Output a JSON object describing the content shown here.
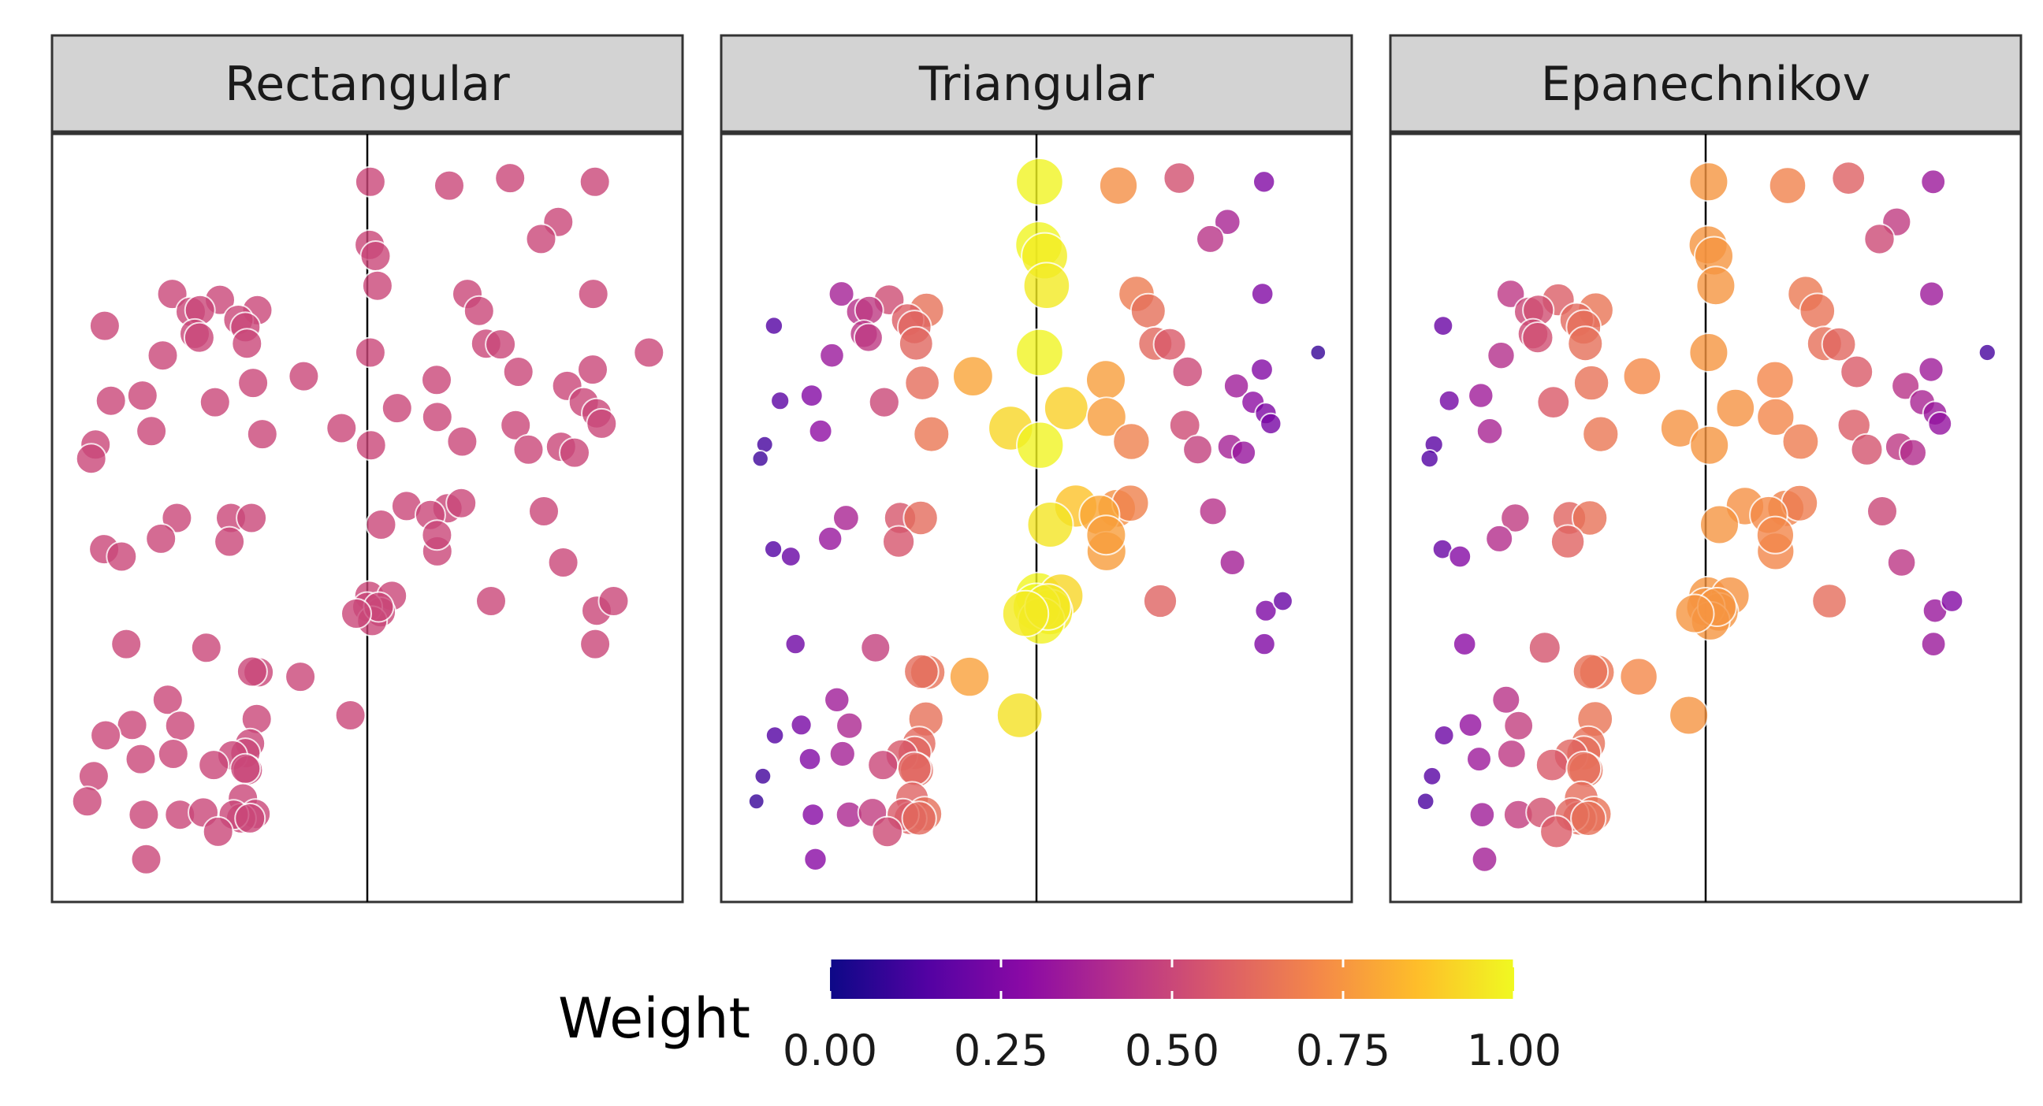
{
  "chart_data": {
    "type": "scatter",
    "facets": [
      "Rectangular",
      "Triangular",
      "Epanechnikov"
    ],
    "facet_kernels": [
      "rect",
      "tri",
      "epa"
    ],
    "cutoff_x": 0,
    "xlim": [
      -1,
      1
    ],
    "ylim": [
      0,
      1
    ],
    "grid": false,
    "legend": {
      "title": "Weight",
      "position": "bottom",
      "ticks": [
        0,
        0.25,
        0.5,
        0.75,
        1
      ],
      "tick_labels": [
        "0.00",
        "0.25",
        "0.50",
        "0.75",
        "1.00"
      ],
      "colors": [
        "#0d0887",
        "#5302a3",
        "#8b0aa5",
        "#b83289",
        "#db5c68",
        "#f48849",
        "#febd2a",
        "#f0f921"
      ]
    },
    "points": [
      {
        "x": 0.01,
        "y": 0.953
      },
      {
        "x": 0.267,
        "y": 0.948
      },
      {
        "x": 0.465,
        "y": 0.958
      },
      {
        "x": 0.741,
        "y": 0.953
      },
      {
        "x": 0.622,
        "y": 0.899
      },
      {
        "x": 0.566,
        "y": 0.876
      },
      {
        "x": 0.008,
        "y": 0.868
      },
      {
        "x": 0.027,
        "y": 0.853
      },
      {
        "x": 0.033,
        "y": 0.813
      },
      {
        "x": 0.326,
        "y": 0.802
      },
      {
        "x": 0.364,
        "y": 0.779
      },
      {
        "x": 0.736,
        "y": 0.802
      },
      {
        "x": 0.387,
        "y": 0.735
      },
      {
        "x": 0.434,
        "y": 0.734
      },
      {
        "x": 0.01,
        "y": 0.723
      },
      {
        "x": 0.917,
        "y": 0.723
      },
      {
        "x": 0.492,
        "y": 0.697
      },
      {
        "x": 0.734,
        "y": 0.7
      },
      {
        "x": 0.226,
        "y": 0.686
      },
      {
        "x": 0.651,
        "y": 0.678
      },
      {
        "x": 0.705,
        "y": 0.656
      },
      {
        "x": 0.097,
        "y": 0.648
      },
      {
        "x": 0.228,
        "y": 0.636
      },
      {
        "x": 0.747,
        "y": 0.641
      },
      {
        "x": 0.763,
        "y": 0.627
      },
      {
        "x": 0.483,
        "y": 0.625
      },
      {
        "x": -0.084,
        "y": 0.621
      },
      {
        "x": 0.309,
        "y": 0.603
      },
      {
        "x": 0.631,
        "y": 0.596
      },
      {
        "x": 0.012,
        "y": 0.598
      },
      {
        "x": 0.525,
        "y": 0.592
      },
      {
        "x": 0.675,
        "y": 0.588
      },
      {
        "x": 0.128,
        "y": 0.516
      },
      {
        "x": 0.261,
        "y": 0.513
      },
      {
        "x": 0.306,
        "y": 0.52
      },
      {
        "x": 0.205,
        "y": 0.504
      },
      {
        "x": 0.575,
        "y": 0.509
      },
      {
        "x": 0.045,
        "y": 0.491
      },
      {
        "x": 0.228,
        "y": 0.455
      },
      {
        "x": 0.227,
        "y": 0.477
      },
      {
        "x": 0.638,
        "y": 0.44
      },
      {
        "x": 0.747,
        "y": 0.375
      },
      {
        "x": 0.007,
        "y": 0.395
      },
      {
        "x": 0.08,
        "y": 0.395
      },
      {
        "x": 0.044,
        "y": 0.373
      },
      {
        "x": 0.0,
        "y": 0.38
      },
      {
        "x": 0.016,
        "y": 0.361
      },
      {
        "x": 0.037,
        "y": 0.38
      },
      {
        "x": -0.036,
        "y": 0.371
      },
      {
        "x": 0.802,
        "y": 0.388
      },
      {
        "x": 0.403,
        "y": 0.388
      },
      {
        "x": 0.742,
        "y": 0.33
      },
      {
        "x": -0.055,
        "y": 0.234
      },
      {
        "x": -0.635,
        "y": 0.802
      },
      {
        "x": -0.48,
        "y": 0.794
      },
      {
        "x": -0.575,
        "y": 0.778
      },
      {
        "x": -0.545,
        "y": 0.78
      },
      {
        "x": -0.358,
        "y": 0.78
      },
      {
        "x": -0.42,
        "y": 0.767
      },
      {
        "x": -0.397,
        "y": 0.757
      },
      {
        "x": -0.855,
        "y": 0.759
      },
      {
        "x": -0.562,
        "y": 0.748
      },
      {
        "x": -0.547,
        "y": 0.743
      },
      {
        "x": -0.392,
        "y": 0.735
      },
      {
        "x": -0.666,
        "y": 0.719
      },
      {
        "x": -0.207,
        "y": 0.691
      },
      {
        "x": -0.372,
        "y": 0.682
      },
      {
        "x": -0.835,
        "y": 0.658
      },
      {
        "x": -0.732,
        "y": 0.665
      },
      {
        "x": -0.496,
        "y": 0.656
      },
      {
        "x": -0.703,
        "y": 0.617
      },
      {
        "x": -0.342,
        "y": 0.613
      },
      {
        "x": -0.885,
        "y": 0.599
      },
      {
        "x": -0.899,
        "y": 0.58
      },
      {
        "x": -0.62,
        "y": 0.5
      },
      {
        "x": -0.444,
        "y": 0.5
      },
      {
        "x": -0.377,
        "y": 0.5
      },
      {
        "x": -0.672,
        "y": 0.472
      },
      {
        "x": -0.449,
        "y": 0.468
      },
      {
        "x": -0.857,
        "y": 0.458
      },
      {
        "x": -0.8,
        "y": 0.448
      },
      {
        "x": -0.524,
        "y": 0.325
      },
      {
        "x": -0.785,
        "y": 0.33
      },
      {
        "x": -0.354,
        "y": 0.292
      },
      {
        "x": -0.375,
        "y": 0.293
      },
      {
        "x": -0.218,
        "y": 0.286
      },
      {
        "x": -0.36,
        "y": 0.229
      },
      {
        "x": -0.65,
        "y": 0.255
      },
      {
        "x": -0.609,
        "y": 0.22
      },
      {
        "x": -0.766,
        "y": 0.221
      },
      {
        "x": -0.852,
        "y": 0.207
      },
      {
        "x": -0.382,
        "y": 0.196
      },
      {
        "x": -0.397,
        "y": 0.183
      },
      {
        "x": -0.632,
        "y": 0.182
      },
      {
        "x": -0.439,
        "y": 0.18
      },
      {
        "x": -0.738,
        "y": 0.175
      },
      {
        "x": -0.5,
        "y": 0.167
      },
      {
        "x": -0.389,
        "y": 0.16
      },
      {
        "x": -0.891,
        "y": 0.152
      },
      {
        "x": -0.397,
        "y": 0.162
      },
      {
        "x": -0.405,
        "y": 0.122
      },
      {
        "x": -0.912,
        "y": 0.118
      },
      {
        "x": -0.61,
        "y": 0.1
      },
      {
        "x": -0.364,
        "y": 0.101
      },
      {
        "x": -0.534,
        "y": 0.103
      },
      {
        "x": -0.411,
        "y": 0.095
      },
      {
        "x": -0.728,
        "y": 0.1
      },
      {
        "x": -0.435,
        "y": 0.1
      },
      {
        "x": -0.382,
        "y": 0.095
      },
      {
        "x": -0.486,
        "y": 0.077
      },
      {
        "x": -0.72,
        "y": 0.04
      }
    ]
  }
}
